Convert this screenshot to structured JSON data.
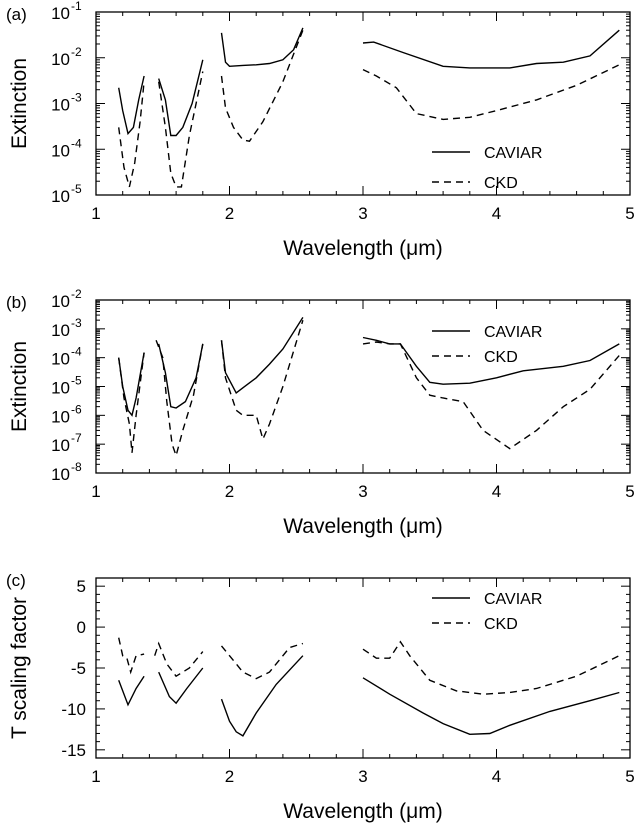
{
  "chart_data": [
    {
      "panel_label": "(a)",
      "type": "line",
      "xlabel": "Wavelength (μm)",
      "ylabel": "Extinction",
      "xlim": [
        1,
        5
      ],
      "ylim": [
        1e-05,
        0.1
      ],
      "yscale": "log",
      "xticks": [
        1,
        2,
        3,
        4,
        5
      ],
      "xtick_labels": [
        "1",
        "2",
        "3",
        "4",
        "5"
      ],
      "yticks": [
        1e-05,
        0.0001,
        0.001,
        0.01,
        0.1
      ],
      "ytick_labels": [
        {
          "base": "10",
          "exp": "-5"
        },
        {
          "base": "10",
          "exp": "-4"
        },
        {
          "base": "10",
          "exp": "-3"
        },
        {
          "base": "10",
          "exp": "-2"
        },
        {
          "base": "10",
          "exp": "-1"
        }
      ],
      "legend": "right",
      "series": [
        {
          "name": "CAVIAR",
          "style": "solid",
          "segments": [
            [
              [
                1.17,
                0.0022
              ],
              [
                1.2,
                0.0007
              ],
              [
                1.24,
                0.00022
              ],
              [
                1.28,
                0.0003
              ],
              [
                1.32,
                0.0012
              ],
              [
                1.36,
                0.004
              ]
            ],
            [
              [
                1.47,
                0.0035
              ],
              [
                1.52,
                0.0012
              ],
              [
                1.56,
                0.0002
              ],
              [
                1.6,
                0.0002
              ],
              [
                1.65,
                0.0003
              ],
              [
                1.72,
                0.001
              ],
              [
                1.8,
                0.009
              ]
            ],
            [
              [
                1.94,
                0.035
              ],
              [
                1.97,
                0.008
              ],
              [
                2.0,
                0.0065
              ],
              [
                2.1,
                0.0068
              ],
              [
                2.2,
                0.007
              ],
              [
                2.3,
                0.0075
              ],
              [
                2.4,
                0.009
              ],
              [
                2.48,
                0.015
              ],
              [
                2.55,
                0.045
              ]
            ],
            [
              [
                3.0,
                0.021
              ],
              [
                3.08,
                0.022
              ],
              [
                3.3,
                0.013
              ],
              [
                3.6,
                0.0065
              ],
              [
                3.8,
                0.006
              ],
              [
                4.1,
                0.006
              ],
              [
                4.3,
                0.0075
              ],
              [
                4.5,
                0.008
              ],
              [
                4.7,
                0.011
              ],
              [
                4.92,
                0.04
              ]
            ]
          ]
        },
        {
          "name": "CKD",
          "style": "dashed",
          "segments": [
            [
              [
                1.17,
                0.0003
              ],
              [
                1.21,
                4e-05
              ],
              [
                1.25,
                1.5e-05
              ],
              [
                1.29,
                5e-05
              ],
              [
                1.33,
                0.0004
              ],
              [
                1.36,
                0.003
              ]
            ],
            [
              [
                1.47,
                0.003
              ],
              [
                1.52,
                0.0003
              ],
              [
                1.56,
                3e-05
              ],
              [
                1.6,
                1.5e-05
              ],
              [
                1.64,
                1.5e-05
              ],
              [
                1.7,
                0.0002
              ],
              [
                1.8,
                0.005
              ]
            ],
            [
              [
                1.94,
                0.004
              ],
              [
                1.97,
                0.0008
              ],
              [
                2.03,
                0.0003
              ],
              [
                2.1,
                0.00016
              ],
              [
                2.15,
                0.00015
              ],
              [
                2.25,
                0.0004
              ],
              [
                2.4,
                0.003
              ],
              [
                2.55,
                0.04
              ]
            ],
            [
              [
                3.0,
                0.0055
              ],
              [
                3.1,
                0.004
              ],
              [
                3.25,
                0.0022
              ],
              [
                3.4,
                0.0006
              ],
              [
                3.6,
                0.00045
              ],
              [
                3.8,
                0.0005
              ],
              [
                4.0,
                0.0007
              ],
              [
                4.3,
                0.0012
              ],
              [
                4.6,
                0.0025
              ],
              [
                4.92,
                0.007
              ]
            ]
          ]
        }
      ]
    },
    {
      "panel_label": "(b)",
      "type": "line",
      "xlabel": "Wavelength (μm)",
      "ylabel": "Extinction",
      "xlim": [
        1,
        5
      ],
      "ylim": [
        1e-08,
        0.01
      ],
      "yscale": "log",
      "xticks": [
        1,
        2,
        3,
        4,
        5
      ],
      "xtick_labels": [
        "1",
        "2",
        "3",
        "4",
        "5"
      ],
      "yticks": [
        1e-08,
        1e-07,
        1e-06,
        1e-05,
        0.0001,
        0.001,
        0.01
      ],
      "ytick_labels": [
        {
          "base": "10",
          "exp": "-8"
        },
        {
          "base": "10",
          "exp": "-7"
        },
        {
          "base": "10",
          "exp": "-6"
        },
        {
          "base": "10",
          "exp": "-5"
        },
        {
          "base": "10",
          "exp": "-4"
        },
        {
          "base": "10",
          "exp": "-3"
        },
        {
          "base": "10",
          "exp": "-2"
        }
      ],
      "legend": "top-right",
      "series": [
        {
          "name": "CAVIAR",
          "style": "solid",
          "segments": [
            [
              [
                1.17,
                0.0001
              ],
              [
                1.2,
                1e-05
              ],
              [
                1.24,
                1.5e-06
              ],
              [
                1.27,
                1e-06
              ],
              [
                1.3,
                4e-06
              ],
              [
                1.36,
                0.00015
              ]
            ],
            [
              [
                1.47,
                0.0003
              ],
              [
                1.52,
                3e-05
              ],
              [
                1.56,
                2e-06
              ],
              [
                1.6,
                1.8e-06
              ],
              [
                1.67,
                3e-06
              ],
              [
                1.75,
                2e-05
              ],
              [
                1.8,
                0.0003
              ]
            ],
            [
              [
                1.94,
                0.0004
              ],
              [
                1.97,
                3e-05
              ],
              [
                2.05,
                6e-06
              ],
              [
                2.1,
                9e-06
              ],
              [
                2.2,
                2e-05
              ],
              [
                2.3,
                6e-05
              ],
              [
                2.4,
                0.0002
              ],
              [
                2.55,
                0.0025
              ]
            ],
            [
              [
                3.0,
                0.0005
              ],
              [
                3.1,
                0.0004
              ],
              [
                3.2,
                0.0003
              ],
              [
                3.28,
                0.0003
              ],
              [
                3.4,
                5e-05
              ],
              [
                3.5,
                1.4e-05
              ],
              [
                3.6,
                1.2e-05
              ],
              [
                3.8,
                1.3e-05
              ],
              [
                4.0,
                2e-05
              ],
              [
                4.2,
                3.5e-05
              ],
              [
                4.5,
                5e-05
              ],
              [
                4.7,
                8e-05
              ],
              [
                4.92,
                0.0003
              ]
            ]
          ]
        },
        {
          "name": "CKD",
          "style": "dashed",
          "segments": [
            [
              [
                1.17,
                0.0001
              ],
              [
                1.21,
                4e-06
              ],
              [
                1.25,
                5e-07
              ],
              [
                1.27,
                5e-08
              ],
              [
                1.3,
                1e-06
              ],
              [
                1.36,
                0.00015
              ]
            ],
            [
              [
                1.45,
                0.0004
              ],
              [
                1.5,
                0.0001
              ],
              [
                1.53,
                3e-06
              ],
              [
                1.57,
                1e-07
              ],
              [
                1.6,
                4e-08
              ],
              [
                1.65,
                3e-07
              ],
              [
                1.73,
                5e-06
              ],
              [
                1.8,
                0.0003
              ]
            ],
            [
              [
                1.94,
                0.0004
              ],
              [
                1.97,
                2e-05
              ],
              [
                2.05,
                1.5e-06
              ],
              [
                2.1,
                1e-06
              ],
              [
                2.2,
                1e-06
              ],
              [
                2.25,
                1.5e-07
              ],
              [
                2.3,
                5e-07
              ],
              [
                2.4,
                1e-05
              ],
              [
                2.55,
                0.002
              ]
            ],
            [
              [
                3.0,
                0.0003
              ],
              [
                3.1,
                0.00035
              ],
              [
                3.2,
                0.0003
              ],
              [
                3.28,
                0.0003
              ],
              [
                3.4,
                2e-05
              ],
              [
                3.5,
                5e-06
              ],
              [
                3.6,
                4e-06
              ],
              [
                3.75,
                3e-06
              ],
              [
                3.9,
                3e-07
              ],
              [
                4.1,
                7e-08
              ],
              [
                4.3,
                3e-07
              ],
              [
                4.5,
                2e-06
              ],
              [
                4.7,
                8e-06
              ],
              [
                4.92,
                0.00012
              ]
            ]
          ]
        }
      ]
    },
    {
      "panel_label": "(c)",
      "type": "line",
      "xlabel": "Wavelength (μm)",
      "ylabel": "T scaling factor",
      "xlim": [
        1,
        5
      ],
      "ylim": [
        -16,
        6
      ],
      "yscale": "linear",
      "xticks": [
        1,
        2,
        3,
        4,
        5
      ],
      "xtick_labels": [
        "1",
        "2",
        "3",
        "4",
        "5"
      ],
      "yticks": [
        -15,
        -10,
        -5,
        0,
        5
      ],
      "ytick_labels": [
        "-15",
        "-10",
        "-5",
        "0",
        "5"
      ],
      "legend": "top-right",
      "series": [
        {
          "name": "CAVIAR",
          "style": "solid",
          "segments": [
            [
              [
                1.17,
                -6.5
              ],
              [
                1.24,
                -9.5
              ],
              [
                1.3,
                -7.5
              ],
              [
                1.36,
                -6.0
              ]
            ],
            [
              [
                1.47,
                -5.5
              ],
              [
                1.55,
                -8.5
              ],
              [
                1.6,
                -9.3
              ],
              [
                1.68,
                -7.5
              ],
              [
                1.8,
                -5.0
              ]
            ],
            [
              [
                1.94,
                -8.8
              ],
              [
                2.0,
                -11.5
              ],
              [
                2.05,
                -12.8
              ],
              [
                2.1,
                -13.3
              ],
              [
                2.2,
                -10.5
              ],
              [
                2.35,
                -7.0
              ],
              [
                2.55,
                -3.5
              ]
            ],
            [
              [
                3.0,
                -6.2
              ],
              [
                3.2,
                -8.2
              ],
              [
                3.45,
                -10.5
              ],
              [
                3.6,
                -11.8
              ],
              [
                3.8,
                -13.1
              ],
              [
                3.95,
                -13.0
              ],
              [
                4.1,
                -12.0
              ],
              [
                4.4,
                -10.3
              ],
              [
                4.7,
                -9.0
              ],
              [
                4.92,
                -8.0
              ]
            ]
          ]
        },
        {
          "name": "CKD",
          "style": "dashed",
          "segments": [
            [
              [
                1.17,
                -1.3
              ],
              [
                1.2,
                -3.5
              ],
              [
                1.23,
                -3.7
              ],
              [
                1.26,
                -5.5
              ],
              [
                1.3,
                -3.5
              ],
              [
                1.36,
                -3.3
              ]
            ],
            [
              [
                1.44,
                -3.5
              ],
              [
                1.47,
                -2.0
              ],
              [
                1.53,
                -4.5
              ],
              [
                1.6,
                -6.0
              ],
              [
                1.7,
                -5.0
              ],
              [
                1.8,
                -3.0
              ]
            ],
            [
              [
                1.94,
                -2.3
              ],
              [
                2.0,
                -3.5
              ],
              [
                2.1,
                -5.5
              ],
              [
                2.2,
                -6.3
              ],
              [
                2.3,
                -5.5
              ],
              [
                2.45,
                -2.5
              ],
              [
                2.55,
                -2.0
              ]
            ],
            [
              [
                3.0,
                -2.7
              ],
              [
                3.1,
                -3.8
              ],
              [
                3.2,
                -3.8
              ],
              [
                3.28,
                -1.8
              ],
              [
                3.35,
                -3.5
              ],
              [
                3.5,
                -6.5
              ],
              [
                3.7,
                -7.8
              ],
              [
                3.9,
                -8.2
              ],
              [
                4.1,
                -8.0
              ],
              [
                4.3,
                -7.5
              ],
              [
                4.6,
                -6.0
              ],
              [
                4.92,
                -3.5
              ]
            ]
          ]
        }
      ]
    }
  ]
}
